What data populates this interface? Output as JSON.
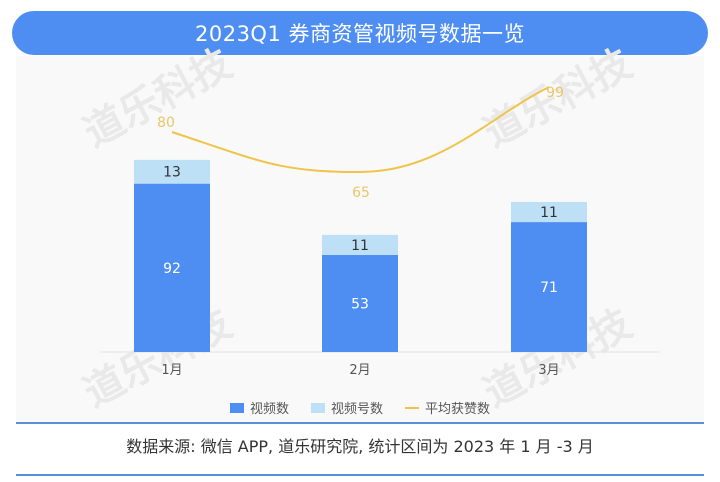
{
  "header": {
    "title": "2023Q1 券商资管视频号数据一览"
  },
  "watermark": "道乐科技",
  "colors": {
    "title_bg": "#4e8ef3",
    "bar_video": "#4e8ef3",
    "bar_account": "#bde0f6",
    "line": "#f0c44a",
    "rule": "#5a8fd6"
  },
  "legend": {
    "items": [
      {
        "label": "视频数",
        "color": "#4e8ef3",
        "kind": "box"
      },
      {
        "label": "视频号数",
        "color": "#bde0f6",
        "kind": "box"
      },
      {
        "label": "平均获赞数",
        "color": "#f0c44a",
        "kind": "line"
      }
    ]
  },
  "footer": {
    "source": "数据来源: 微信 APP, 道乐研究院, 统计区间为 2023 年 1 月 -3 月"
  },
  "chart_data": {
    "type": "bar",
    "title": "2023Q1 券商资管视频号数据一览",
    "categories": [
      "1月",
      "2月",
      "3月"
    ],
    "series": [
      {
        "name": "视频数",
        "type": "stacked-bar",
        "values": [
          92,
          53,
          71
        ]
      },
      {
        "name": "视频号数",
        "type": "stacked-bar",
        "values": [
          13,
          11,
          11
        ]
      },
      {
        "name": "平均获赞数",
        "type": "line",
        "values": [
          80,
          65,
          99
        ]
      }
    ],
    "xlabel": "",
    "ylabel": "",
    "grid": false,
    "legend_position": "bottom"
  }
}
